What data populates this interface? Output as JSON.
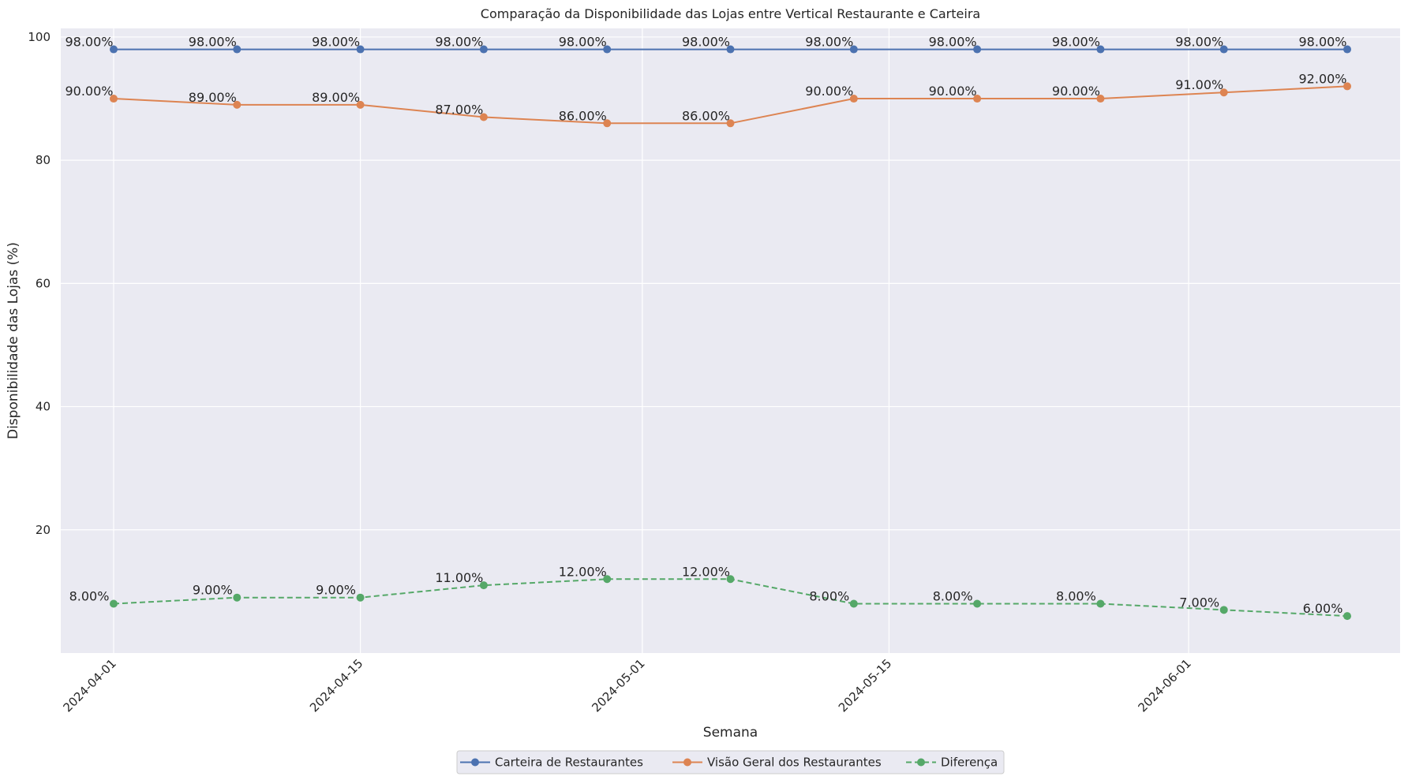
{
  "chart_data": {
    "type": "line",
    "title": "Comparação da Disponibilidade das Lojas entre Vertical Restaurante e Carteira",
    "xlabel": "Semana",
    "ylabel": "Disponibilidade das Lojas (%)",
    "x": [
      "2024-04-01",
      "2024-04-08",
      "2024-04-15",
      "2024-04-22",
      "2024-04-29",
      "2024-05-06",
      "2024-05-13",
      "2024-05-20",
      "2024-05-27",
      "2024-06-03",
      "2024-06-10"
    ],
    "xlim": [
      "2024-03-29",
      "2024-06-13"
    ],
    "ylim": [
      0,
      101.4
    ],
    "xticks": [
      "2024-04-01",
      "2024-04-15",
      "2024-05-01",
      "2024-05-15",
      "2024-06-01"
    ],
    "yticks": [
      20,
      40,
      60,
      80,
      100
    ],
    "grid": true,
    "legend_position": "bottom-center",
    "series": [
      {
        "name": "Carteira de Restaurantes",
        "color": "#4c72b0",
        "dashed": false,
        "values": [
          98,
          98,
          98,
          98,
          98,
          98,
          98,
          98,
          98,
          98,
          98
        ],
        "labels": [
          "98.00%",
          "98.00%",
          "98.00%",
          "98.00%",
          "98.00%",
          "98.00%",
          "98.00%",
          "98.00%",
          "98.00%",
          "98.00%",
          "98.00%"
        ]
      },
      {
        "name": "Visão Geral dos Restaurantes",
        "color": "#dd8452",
        "dashed": false,
        "values": [
          90,
          89,
          89,
          87,
          86,
          86,
          90,
          90,
          90,
          91,
          92
        ],
        "labels": [
          "90.00%",
          "89.00%",
          "89.00%",
          "87.00%",
          "86.00%",
          "86.00%",
          "90.00%",
          "90.00%",
          "90.00%",
          "91.00%",
          "92.00%"
        ]
      },
      {
        "name": "Diferença",
        "color": "#55a868",
        "dashed": true,
        "values": [
          8,
          9,
          9,
          11,
          12,
          12,
          8,
          8,
          8,
          7,
          6
        ],
        "labels": [
          "8.00%",
          "9.00%",
          "9.00%",
          "11.00%",
          "12.00%",
          "12.00%",
          "8.00%",
          "8.00%",
          "8.00%",
          "7.00%",
          "6.00%"
        ]
      }
    ]
  }
}
